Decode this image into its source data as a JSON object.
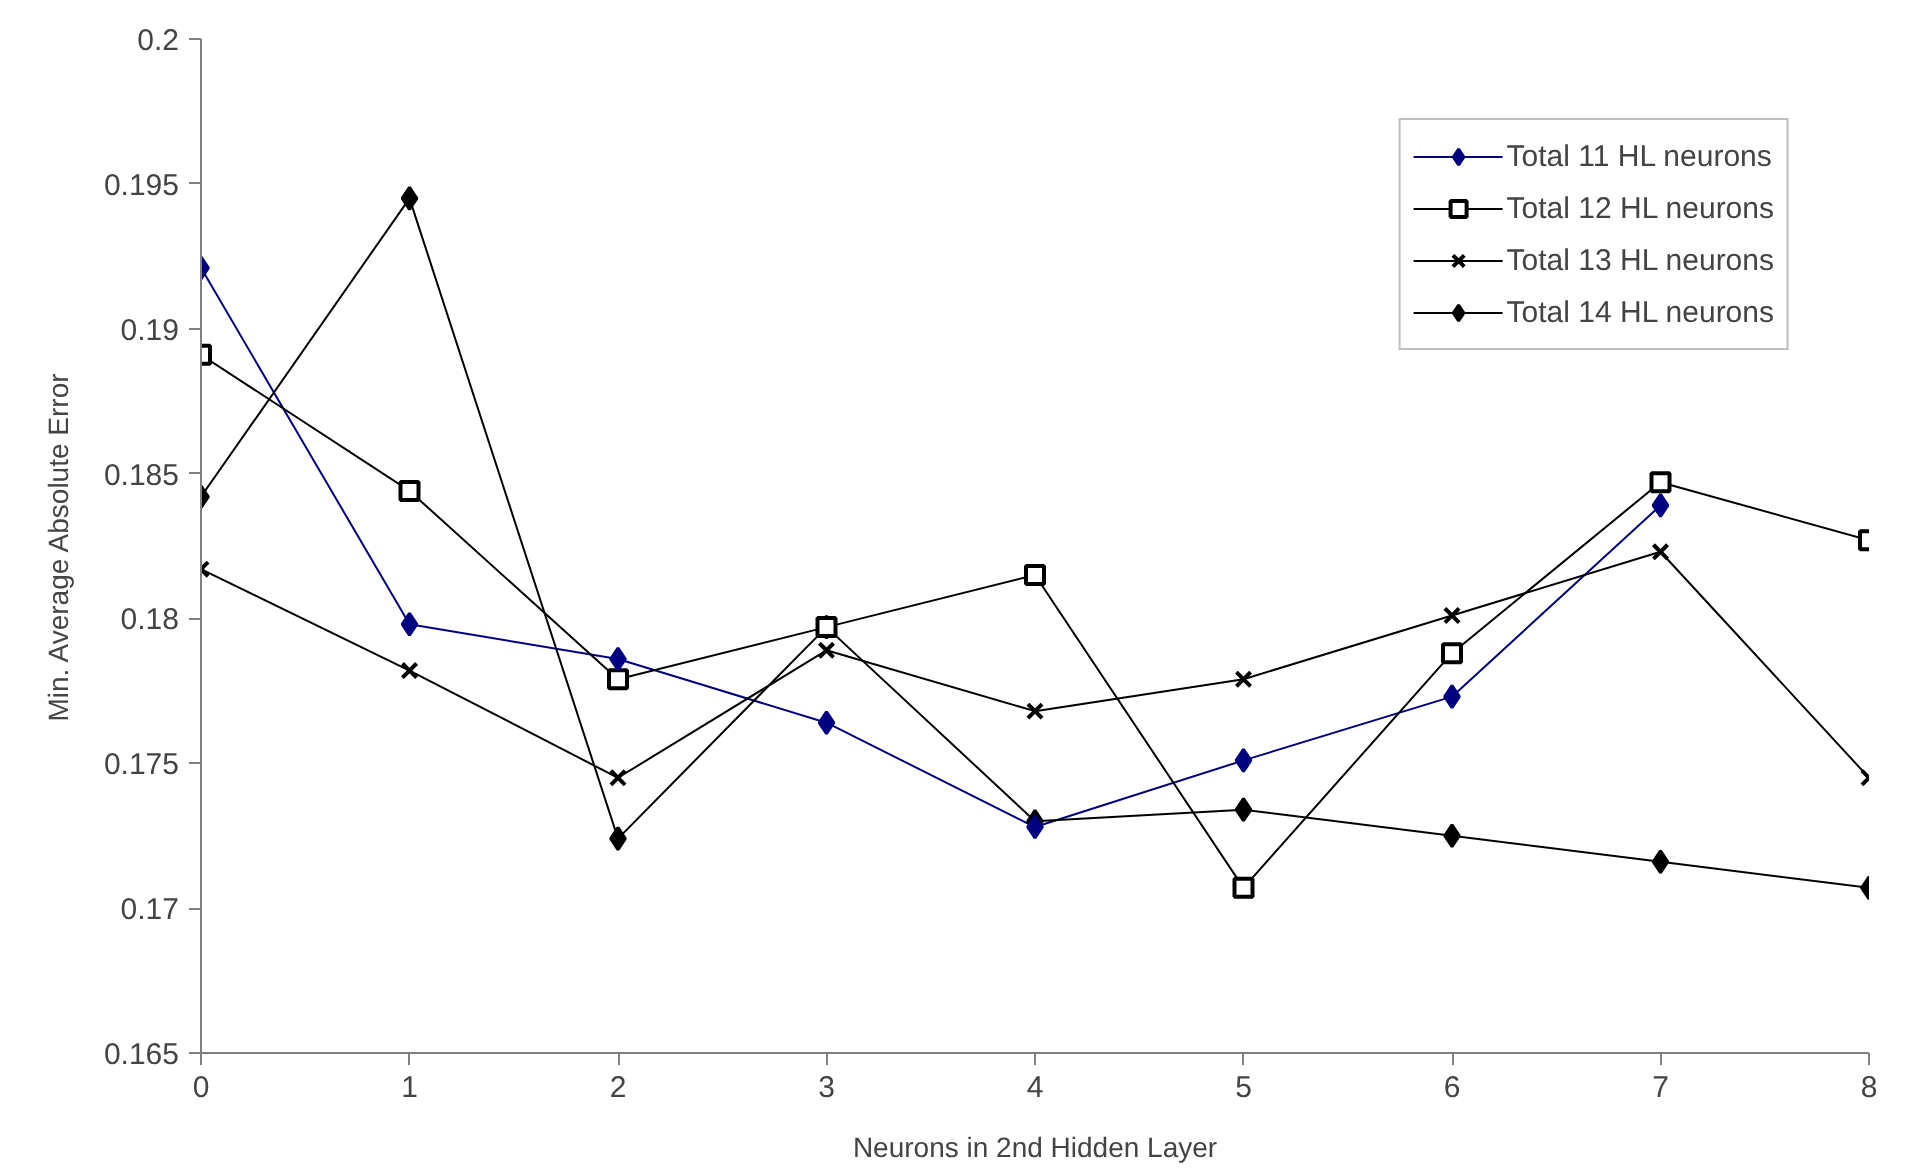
{
  "chart_data": {
    "type": "line",
    "xlabel": "Neurons in 2nd Hidden Layer",
    "ylabel": "Min. Average Absolute Error",
    "x": [
      0,
      1,
      2,
      3,
      4,
      5,
      6,
      7,
      8
    ],
    "xlim": [
      0,
      8
    ],
    "xticks": [
      0,
      1,
      2,
      3,
      4,
      5,
      6,
      7,
      8
    ],
    "ylim": [
      0.165,
      0.2
    ],
    "yticks": [
      0.165,
      0.17,
      0.175,
      0.18,
      0.185,
      0.19,
      0.195,
      0.2
    ],
    "grid": false,
    "legend": "top right",
    "line_style": "solid",
    "series": [
      {
        "name": "Total 11 HL neurons",
        "color": "#000080",
        "marker": "diamond",
        "values": [
          0.1921,
          0.1798,
          0.1786,
          0.1764,
          0.1728,
          0.1751,
          0.1773,
          0.1839,
          null
        ]
      },
      {
        "name": "Total 12 HL neurons",
        "color": "#000000",
        "marker": "square",
        "values": [
          0.1891,
          0.1844,
          0.1779,
          0.1797,
          0.1815,
          0.1707,
          0.1788,
          0.1847,
          0.1827
        ]
      },
      {
        "name": "Total 13 HL neurons",
        "color": "#000000",
        "marker": "cross",
        "values": [
          0.1817,
          0.1782,
          0.1745,
          0.1789,
          0.1768,
          0.1779,
          0.1801,
          0.1823,
          0.1745
        ]
      },
      {
        "name": "Total 14 HL neurons",
        "color": "#000000",
        "marker": "diamond",
        "values": [
          0.1842,
          0.1945,
          0.1724,
          0.1797,
          0.173,
          0.1734,
          0.1725,
          0.1716,
          0.1707
        ]
      }
    ]
  }
}
